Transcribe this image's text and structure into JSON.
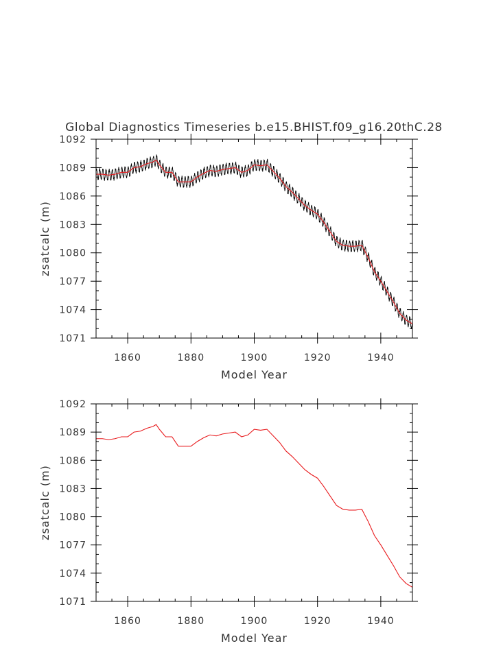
{
  "page_title": "Global Diagnostics Timeseries b.e15.BHIST.f09_g16.20thC.28",
  "colors": {
    "monthly": "#000000",
    "smoothed": "#e8191c",
    "frame": "#000000",
    "text": "#333333"
  },
  "chart_data": [
    {
      "type": "line",
      "title": "Global Diagnostics Timeseries b.e15.BHIST.f09_g16.20thC.28",
      "xlabel": "Model Year",
      "ylabel": "zsatcalc (m)",
      "xlim": [
        1850,
        1950
      ],
      "ylim": [
        1071,
        1092
      ],
      "xticks": [
        1860,
        1880,
        1900,
        1920,
        1940
      ],
      "yticks": [
        1071,
        1074,
        1077,
        1080,
        1083,
        1086,
        1089,
        1092
      ],
      "grid": false,
      "legend": "none",
      "series": [
        {
          "style": "monthly",
          "color": "#000000",
          "amplitude": 0.55,
          "cycles_per_year": 1,
          "x": [
            1850,
            1852,
            1854,
            1856,
            1858,
            1860,
            1862,
            1864,
            1866,
            1868,
            1869,
            1870,
            1872,
            1874,
            1876,
            1878,
            1880,
            1882,
            1884,
            1886,
            1888,
            1890,
            1892,
            1894,
            1896,
            1898,
            1900,
            1902,
            1904,
            1906,
            1908,
            1910,
            1912,
            1914,
            1916,
            1918,
            1920,
            1922,
            1924,
            1926,
            1928,
            1930,
            1932,
            1934,
            1936,
            1938,
            1940,
            1942,
            1944,
            1946,
            1948,
            1950
          ],
          "y": [
            1088.3,
            1088.3,
            1088.2,
            1088.3,
            1088.5,
            1088.5,
            1089.0,
            1089.1,
            1089.4,
            1089.6,
            1089.8,
            1089.3,
            1088.5,
            1088.5,
            1087.5,
            1087.5,
            1087.5,
            1088.0,
            1088.4,
            1088.7,
            1088.6,
            1088.8,
            1088.9,
            1089.0,
            1088.5,
            1088.7,
            1089.3,
            1089.2,
            1089.3,
            1088.6,
            1087.9,
            1087.0,
            1086.4,
            1085.7,
            1085.0,
            1084.5,
            1084.1,
            1083.2,
            1082.2,
            1081.2,
            1080.8,
            1080.7,
            1080.7,
            1080.8,
            1079.5,
            1078.0,
            1077.0,
            1075.9,
            1074.8,
            1073.6,
            1072.9,
            1072.5
          ]
        },
        {
          "style": "smoothed",
          "color": "#e8191c",
          "x": [
            1850,
            1852,
            1854,
            1856,
            1858,
            1860,
            1862,
            1864,
            1866,
            1868,
            1869,
            1870,
            1872,
            1874,
            1876,
            1878,
            1880,
            1882,
            1884,
            1886,
            1888,
            1890,
            1892,
            1894,
            1896,
            1898,
            1900,
            1902,
            1904,
            1906,
            1908,
            1910,
            1912,
            1914,
            1916,
            1918,
            1920,
            1922,
            1924,
            1926,
            1928,
            1930,
            1932,
            1934,
            1936,
            1938,
            1940,
            1942,
            1944,
            1946,
            1948,
            1950
          ],
          "y": [
            1088.3,
            1088.3,
            1088.2,
            1088.3,
            1088.5,
            1088.5,
            1089.0,
            1089.1,
            1089.4,
            1089.6,
            1089.8,
            1089.3,
            1088.5,
            1088.5,
            1087.5,
            1087.5,
            1087.5,
            1088.0,
            1088.4,
            1088.7,
            1088.6,
            1088.8,
            1088.9,
            1089.0,
            1088.5,
            1088.7,
            1089.3,
            1089.2,
            1089.3,
            1088.6,
            1087.9,
            1087.0,
            1086.4,
            1085.7,
            1085.0,
            1084.5,
            1084.1,
            1083.2,
            1082.2,
            1081.2,
            1080.8,
            1080.7,
            1080.7,
            1080.8,
            1079.5,
            1078.0,
            1077.0,
            1075.9,
            1074.8,
            1073.6,
            1072.9,
            1072.5
          ]
        }
      ]
    },
    {
      "type": "line",
      "title": "",
      "xlabel": "Model Year",
      "ylabel": "zsatcalc (m)",
      "xlim": [
        1850,
        1950
      ],
      "ylim": [
        1071,
        1092
      ],
      "xticks": [
        1860,
        1880,
        1900,
        1920,
        1940
      ],
      "yticks": [
        1071,
        1074,
        1077,
        1080,
        1083,
        1086,
        1089,
        1092
      ],
      "grid": false,
      "legend": "none",
      "series": [
        {
          "style": "smoothed",
          "color": "#e8191c",
          "x": [
            1850,
            1852,
            1854,
            1856,
            1858,
            1860,
            1862,
            1864,
            1866,
            1868,
            1869,
            1870,
            1872,
            1874,
            1876,
            1878,
            1880,
            1882,
            1884,
            1886,
            1888,
            1890,
            1892,
            1894,
            1896,
            1898,
            1900,
            1902,
            1904,
            1906,
            1908,
            1910,
            1912,
            1914,
            1916,
            1918,
            1920,
            1922,
            1924,
            1926,
            1928,
            1930,
            1932,
            1934,
            1936,
            1938,
            1940,
            1942,
            1944,
            1946,
            1948,
            1950
          ],
          "y": [
            1088.3,
            1088.3,
            1088.2,
            1088.3,
            1088.5,
            1088.5,
            1089.0,
            1089.1,
            1089.4,
            1089.6,
            1089.8,
            1089.3,
            1088.5,
            1088.5,
            1087.5,
            1087.5,
            1087.5,
            1088.0,
            1088.4,
            1088.7,
            1088.6,
            1088.8,
            1088.9,
            1089.0,
            1088.5,
            1088.7,
            1089.3,
            1089.2,
            1089.3,
            1088.6,
            1087.9,
            1087.0,
            1086.4,
            1085.7,
            1085.0,
            1084.5,
            1084.1,
            1083.2,
            1082.2,
            1081.2,
            1080.8,
            1080.7,
            1080.7,
            1080.8,
            1079.5,
            1078.0,
            1077.0,
            1075.9,
            1074.8,
            1073.6,
            1072.9,
            1072.5
          ]
        }
      ]
    }
  ]
}
